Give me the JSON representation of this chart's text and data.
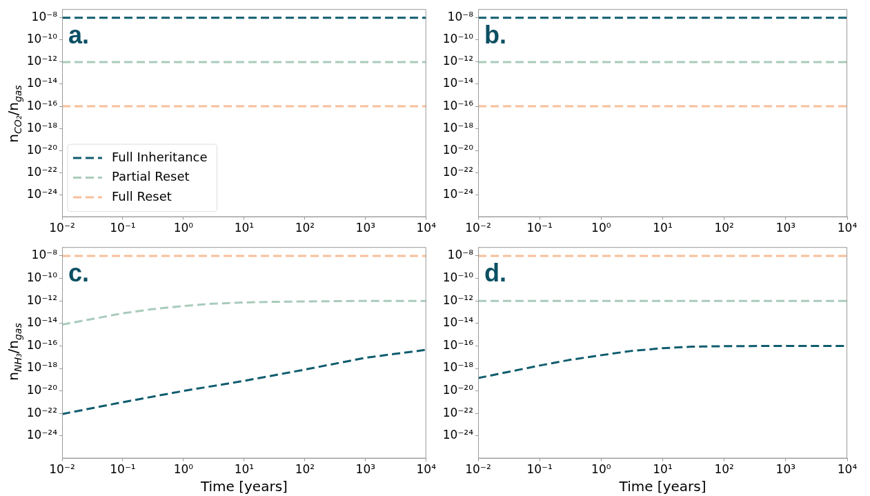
{
  "chart_data": [
    {
      "type": "line",
      "ylabel": "n$_{CO₂}$/n$_{gas}$",
      "annotations": [
        "a."
      ],
      "log": "xy",
      "legend": "bottom left",
      "line_style": "dashed",
      "marker": "none",
      "grid": false,
      "xlim": [
        0.01,
        10000
      ],
      "xticks": [
        {
          "value": 0.01,
          "label": "10⁻²"
        },
        {
          "value": 0.1,
          "label": "10⁻¹"
        },
        {
          "value": 1,
          "label": "10⁰"
        },
        {
          "value": 10,
          "label": "10¹"
        },
        {
          "value": 100,
          "label": "10²"
        },
        {
          "value": 1000,
          "label": "10³"
        },
        {
          "value": 10000,
          "label": "10⁴"
        }
      ],
      "ylim": [
        1e-26,
        6e-08
      ],
      "yticks": [
        {
          "value": 1e-08,
          "label": "10⁻⁸"
        },
        {
          "value": 1e-10,
          "label": "10⁻¹⁰"
        },
        {
          "value": 1e-12,
          "label": "10⁻¹²"
        },
        {
          "value": 1e-14,
          "label": "10⁻¹⁴"
        },
        {
          "value": 1e-16,
          "label": "10⁻¹⁶"
        },
        {
          "value": 1e-18,
          "label": "10⁻¹⁸"
        },
        {
          "value": 1e-20,
          "label": "10⁻²⁰"
        },
        {
          "value": 1e-22,
          "label": "10⁻²²"
        },
        {
          "value": 1e-24,
          "label": "10⁻²⁴"
        }
      ],
      "series": [
        {
          "name": "Full Inheritance",
          "color": "#0f5c6e",
          "x": [
            0.01,
            10000
          ],
          "values": [
            1e-08,
            1e-08
          ]
        },
        {
          "name": "Partial Reset",
          "color": "#a9cbbb",
          "x": [
            0.01,
            10000
          ],
          "values": [
            1e-12,
            1e-12
          ]
        },
        {
          "name": "Full Reset",
          "color": "#f7bf9a",
          "x": [
            0.01,
            10000
          ],
          "values": [
            1e-16,
            1e-16
          ]
        }
      ]
    },
    {
      "type": "line",
      "annotations": [
        "b."
      ],
      "log": "xy",
      "line_style": "dashed",
      "marker": "none",
      "grid": false,
      "xlim": [
        0.01,
        10000
      ],
      "xticks": [
        {
          "value": 0.01,
          "label": "10⁻²"
        },
        {
          "value": 0.1,
          "label": "10⁻¹"
        },
        {
          "value": 1,
          "label": "10⁰"
        },
        {
          "value": 10,
          "label": "10¹"
        },
        {
          "value": 100,
          "label": "10²"
        },
        {
          "value": 1000,
          "label": "10³"
        },
        {
          "value": 10000,
          "label": "10⁴"
        }
      ],
      "ylim": [
        1e-26,
        6e-08
      ],
      "yticks": [
        {
          "value": 1e-08,
          "label": "10⁻⁸"
        },
        {
          "value": 1e-10,
          "label": "10⁻¹⁰"
        },
        {
          "value": 1e-12,
          "label": "10⁻¹²"
        },
        {
          "value": 1e-14,
          "label": "10⁻¹⁴"
        },
        {
          "value": 1e-16,
          "label": "10⁻¹⁶"
        },
        {
          "value": 1e-18,
          "label": "10⁻¹⁸"
        },
        {
          "value": 1e-20,
          "label": "10⁻²⁰"
        },
        {
          "value": 1e-22,
          "label": "10⁻²²"
        },
        {
          "value": 1e-24,
          "label": "10⁻²⁴"
        }
      ],
      "series": [
        {
          "color": "#0f5c6e",
          "x": [
            0.01,
            10000
          ],
          "values": [
            1e-08,
            1e-08
          ]
        },
        {
          "color": "#a9cbbb",
          "x": [
            0.01,
            10000
          ],
          "values": [
            1e-12,
            1e-12
          ]
        },
        {
          "color": "#f7bf9a",
          "x": [
            0.01,
            10000
          ],
          "values": [
            1e-16,
            1e-16
          ]
        }
      ]
    },
    {
      "type": "line",
      "ylabel": "n$_{NH₃}$/n$_{gas}$",
      "xlabel": "Time [years]",
      "annotations": [
        "c."
      ],
      "log": "xy",
      "line_style": "dashed",
      "marker": "none",
      "grid": false,
      "xlim": [
        0.01,
        10000
      ],
      "xticks": [
        {
          "value": 0.01,
          "label": "10⁻²"
        },
        {
          "value": 0.1,
          "label": "10⁻¹"
        },
        {
          "value": 1,
          "label": "10⁰"
        },
        {
          "value": 10,
          "label": "10¹"
        },
        {
          "value": 100,
          "label": "10²"
        },
        {
          "value": 1000,
          "label": "10³"
        },
        {
          "value": 10000,
          "label": "10⁴"
        }
      ],
      "ylim": [
        1e-26,
        6e-08
      ],
      "yticks": [
        {
          "value": 1e-08,
          "label": "10⁻⁸"
        },
        {
          "value": 1e-10,
          "label": "10⁻¹⁰"
        },
        {
          "value": 1e-12,
          "label": "10⁻¹²"
        },
        {
          "value": 1e-14,
          "label": "10⁻¹⁴"
        },
        {
          "value": 1e-16,
          "label": "10⁻¹⁶"
        },
        {
          "value": 1e-18,
          "label": "10⁻¹⁸"
        },
        {
          "value": 1e-20,
          "label": "10⁻²⁰"
        },
        {
          "value": 1e-22,
          "label": "10⁻²²"
        },
        {
          "value": 1e-24,
          "label": "10⁻²⁴"
        }
      ],
      "series": [
        {
          "color": "#0f5c6e",
          "x": [
            0.01,
            0.1,
            1,
            10,
            100,
            1000,
            10000
          ],
          "values": [
            8.9e-23,
            1e-21,
            1e-20,
            7.9e-20,
            7.9e-19,
            8.9e-18,
            4.5e-17
          ]
        },
        {
          "color": "#a9cbbb",
          "x": [
            0.01,
            0.1,
            0.3,
            1,
            3,
            10,
            30,
            100,
            1000,
            10000
          ],
          "values": [
            7.9e-15,
            7.9e-14,
            1.8e-13,
            3.5e-13,
            5.6e-13,
            7.2e-13,
            8.3e-13,
            8.9e-13,
            1e-12,
            1e-12
          ]
        },
        {
          "color": "#f7bf9a",
          "x": [
            0.01,
            10000
          ],
          "values": [
            1e-08,
            1e-08
          ]
        }
      ]
    },
    {
      "type": "line",
      "xlabel": "Time [years]",
      "annotations": [
        "d."
      ],
      "log": "xy",
      "line_style": "dashed",
      "marker": "none",
      "grid": false,
      "xlim": [
        0.01,
        10000
      ],
      "xticks": [
        {
          "value": 0.01,
          "label": "10⁻²"
        },
        {
          "value": 0.1,
          "label": "10⁻¹"
        },
        {
          "value": 1,
          "label": "10⁰"
        },
        {
          "value": 10,
          "label": "10¹"
        },
        {
          "value": 100,
          "label": "10²"
        },
        {
          "value": 1000,
          "label": "10³"
        },
        {
          "value": 10000,
          "label": "10⁴"
        }
      ],
      "ylim": [
        1e-26,
        6e-08
      ],
      "yticks": [
        {
          "value": 1e-08,
          "label": "10⁻⁸"
        },
        {
          "value": 1e-10,
          "label": "10⁻¹⁰"
        },
        {
          "value": 1e-12,
          "label": "10⁻¹²"
        },
        {
          "value": 1e-14,
          "label": "10⁻¹⁴"
        },
        {
          "value": 1e-16,
          "label": "10⁻¹⁶"
        },
        {
          "value": 1e-18,
          "label": "10⁻¹⁸"
        },
        {
          "value": 1e-20,
          "label": "10⁻²⁰"
        },
        {
          "value": 1e-22,
          "label": "10⁻²²"
        },
        {
          "value": 1e-24,
          "label": "10⁻²⁴"
        }
      ],
      "series": [
        {
          "color": "#0f5c6e",
          "x": [
            0.01,
            0.1,
            0.3,
            1,
            3,
            10,
            30,
            100,
            1000,
            10000
          ],
          "values": [
            1.4e-19,
            1.8e-18,
            5.6e-18,
            1.5e-17,
            3.5e-17,
            6.3e-17,
            8.5e-17,
            9.5e-17,
            1e-16,
            1e-16
          ]
        },
        {
          "color": "#a9cbbb",
          "x": [
            0.01,
            10000
          ],
          "values": [
            1e-12,
            1e-12
          ]
        },
        {
          "color": "#f7bf9a",
          "x": [
            0.01,
            10000
          ],
          "values": [
            1e-08,
            1e-08
          ]
        }
      ]
    }
  ]
}
